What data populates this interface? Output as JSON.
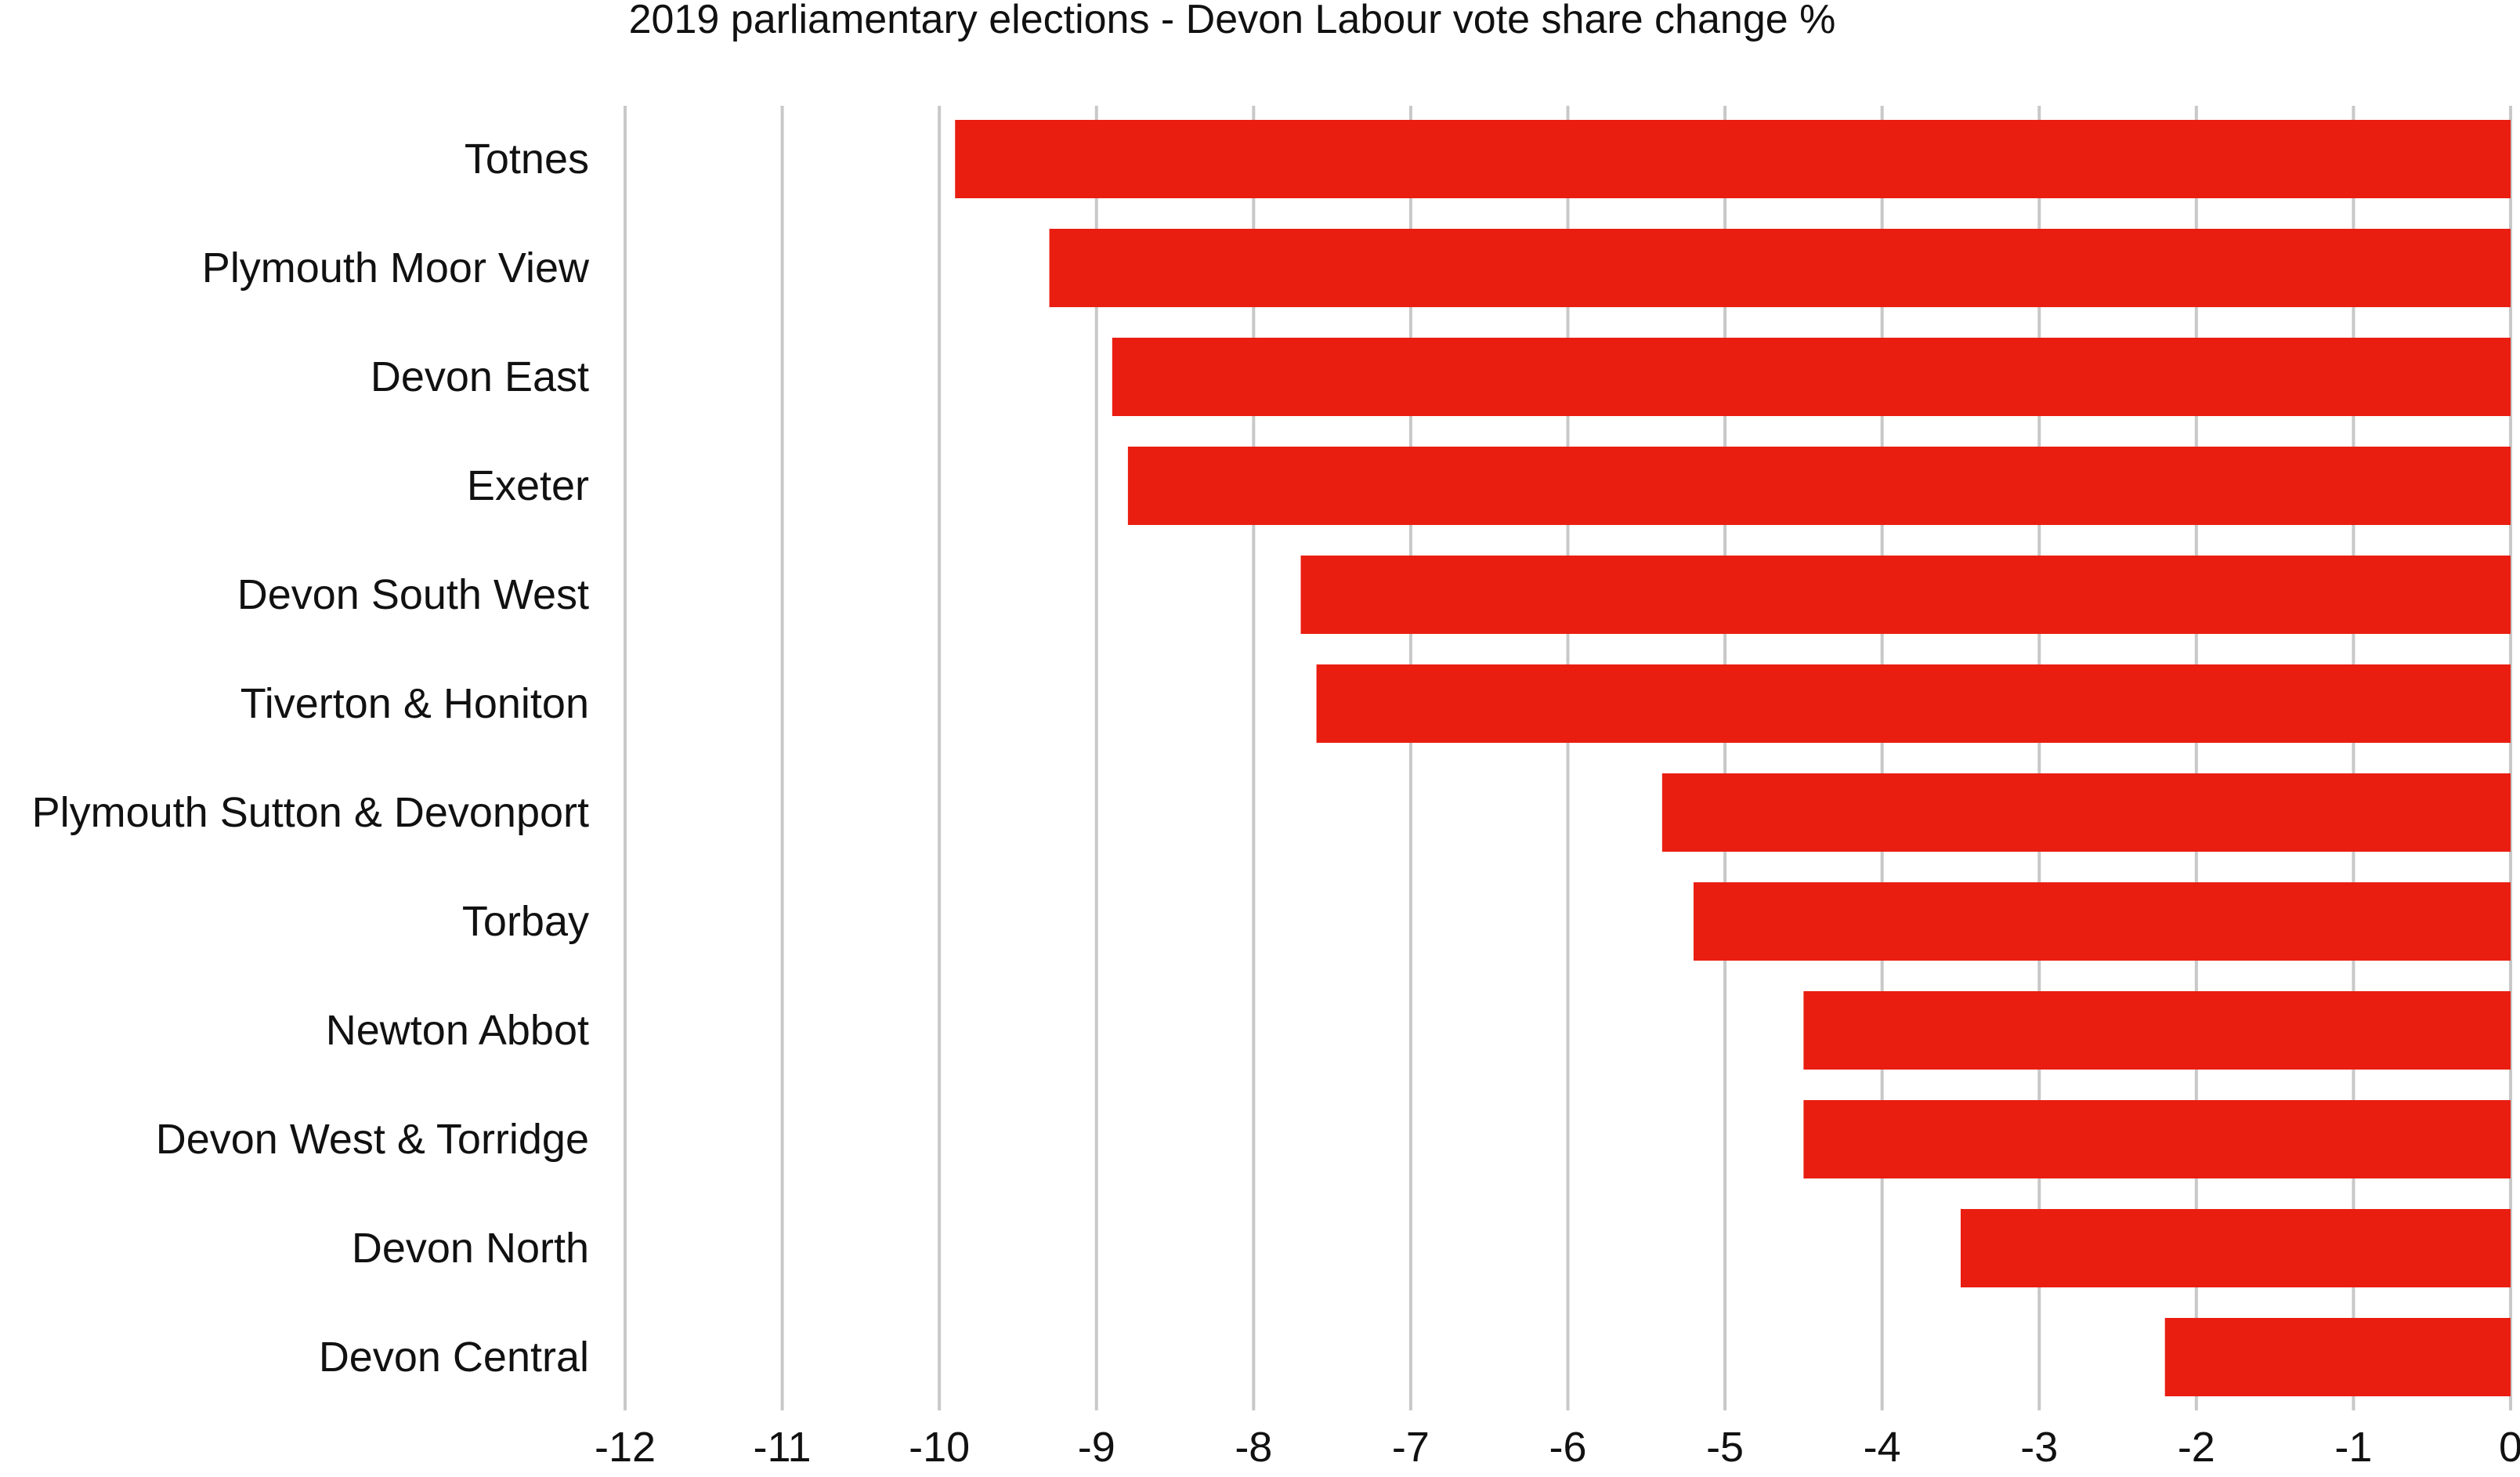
{
  "chart_data": {
    "type": "bar",
    "orientation": "horizontal",
    "title": "2019 parliamentary elections - Devon Labour vote share change %",
    "xlabel": "",
    "ylabel": "",
    "categories": [
      "Totnes",
      "Plymouth Moor View",
      "Devon East",
      "Exeter",
      "Devon South West",
      "Tiverton & Honiton",
      "Plymouth Sutton & Devonport",
      "Torbay",
      "Newton Abbot",
      "Devon West & Torridge",
      "Devon North",
      "Devon Central"
    ],
    "values": [
      -9.9,
      -9.3,
      -8.9,
      -8.8,
      -7.7,
      -7.6,
      -5.4,
      -5.2,
      -4.5,
      -4.5,
      -3.5,
      -2.2
    ],
    "xlim": [
      -12,
      0
    ],
    "ticks": [
      "-12",
      "-11",
      "-10",
      "-9",
      "-8",
      "-7",
      "-6",
      "-5",
      "-4",
      "-3",
      "-2",
      "-1",
      "0"
    ],
    "grid": "vertical",
    "legend": "none",
    "bar_color": "#e91e11"
  }
}
